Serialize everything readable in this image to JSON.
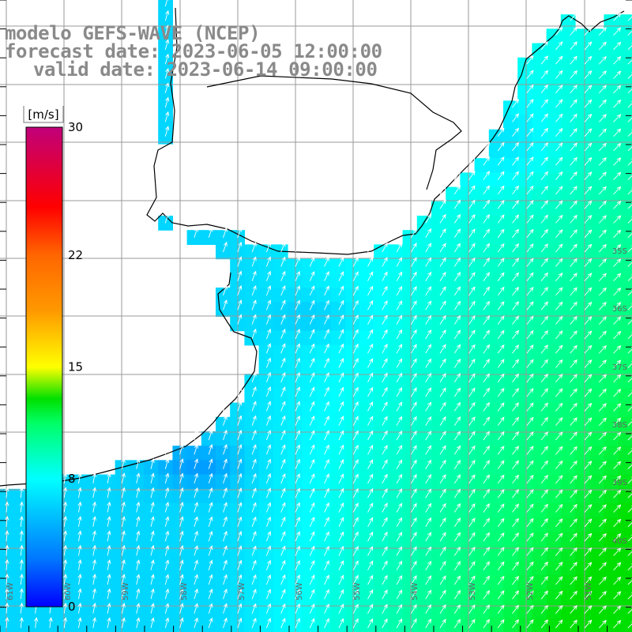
{
  "header": {
    "model_line": "modelo GEFS-WAVE (NCEP)",
    "forecast_line": "forecast date: 2023-06-05 12:00:00",
    "valid_line": "valid date: 2023-06-14 09:00:00"
  },
  "colorbar": {
    "unit_label": "[m/s]",
    "ticks": [
      "30",
      "22",
      "15",
      "8",
      "0"
    ],
    "tick_values": [
      30,
      22,
      15,
      8,
      0
    ],
    "range": [
      0,
      30
    ],
    "stops": [
      {
        "v": 0,
        "color": "#0000ff"
      },
      {
        "v": 3,
        "color": "#0077ff"
      },
      {
        "v": 8,
        "color": "#00ffff"
      },
      {
        "v": 11.5,
        "color": "#00ff66"
      },
      {
        "v": 13,
        "color": "#00e000"
      },
      {
        "v": 15,
        "color": "#ffff00"
      },
      {
        "v": 18.5,
        "color": "#ff9900"
      },
      {
        "v": 22,
        "color": "#ff6600"
      },
      {
        "v": 25,
        "color": "#ff0000"
      },
      {
        "v": 30,
        "color": "#c0007a"
      }
    ]
  },
  "map": {
    "lat_labels": [
      "35S",
      "36S",
      "37S",
      "38S",
      "39S",
      "40S"
    ],
    "lon_labels": [
      "61W",
      "60W",
      "59W",
      "58W",
      "57W",
      "56W",
      "55W",
      "54W",
      "53W",
      "52W",
      "51W"
    ],
    "arrow_color": "#ffffff",
    "coast_color": "#000000",
    "grid_color": "#9a9a9a"
  }
}
